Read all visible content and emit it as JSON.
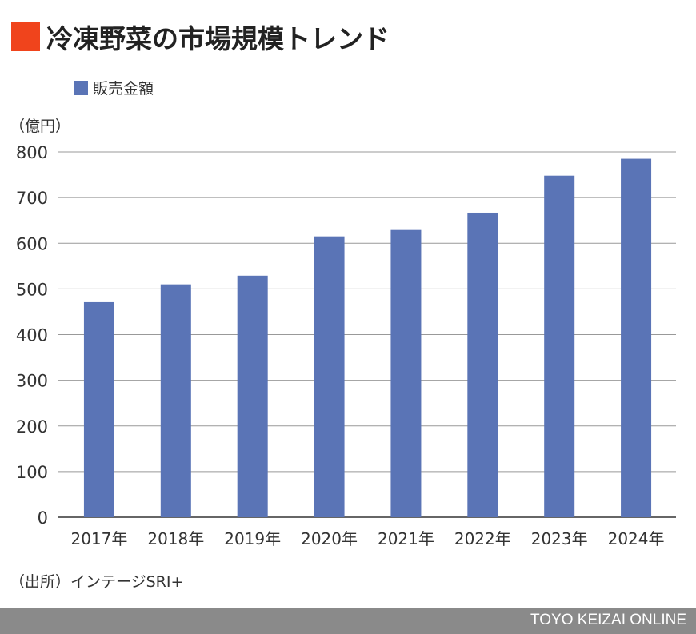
{
  "header": {
    "title": "冷凍野菜の市場規模トレンド"
  },
  "unit_label": "（億円）",
  "source": "（出所）インテージSRI+",
  "footer": "TOYO KEIZAI ONLINE",
  "chart_data": {
    "type": "bar",
    "title": "冷凍野菜の市場規模トレンド",
    "categories": [
      "2017年",
      "2018年",
      "2019年",
      "2020年",
      "2021年",
      "2022年",
      "2023年",
      "2024年"
    ],
    "series": [
      {
        "name": "販売金額",
        "color": "#5a74b6",
        "values": [
          471,
          510,
          529,
          615,
          629,
          667,
          748,
          785
        ]
      }
    ],
    "ylabel": "（億円）",
    "ylim": [
      0,
      800
    ],
    "yticks": [
      0,
      100,
      200,
      300,
      400,
      500,
      600,
      700,
      800
    ],
    "grid": true,
    "legend": "top-left"
  }
}
